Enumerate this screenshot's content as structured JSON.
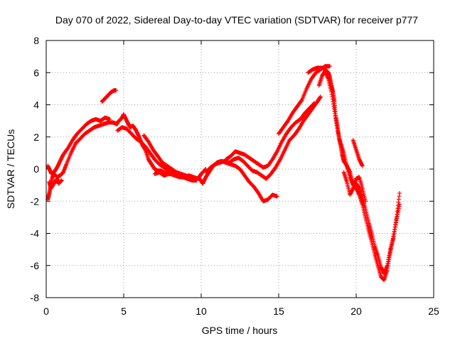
{
  "chart_data": {
    "type": "scatter",
    "title": "Day 070 of 2022, Sidereal Day-to-day VTEC variation (SDTVAR) for receiver p777",
    "xlabel": "GPS time / hours",
    "ylabel": "SDTVAR / TECUs",
    "xlim": [
      0,
      25
    ],
    "ylim": [
      -8,
      8
    ],
    "xticks": [
      0,
      5,
      10,
      15,
      20,
      25
    ],
    "yticks": [
      -8,
      -6,
      -4,
      -2,
      0,
      2,
      4,
      6,
      8
    ],
    "grid": true,
    "marker": "+",
    "color": "#ff0000",
    "series": [
      {
        "name": "SDTVAR",
        "segments": [
          {
            "x": [
              0.1,
              0.2,
              0.3,
              0.4,
              0.5,
              0.7,
              0.9,
              1.1,
              1.3,
              1.6,
              1.9,
              2.2,
              2.5,
              2.8,
              3.1,
              3.4,
              3.7,
              4.0,
              4.3,
              4.6
            ],
            "y": [
              -1.9,
              -1.5,
              -1.0,
              -0.5,
              -0.3,
              -0.5,
              -0.4,
              -0.2,
              0.3,
              1.0,
              1.6,
              1.9,
              2.2,
              2.4,
              2.6,
              2.7,
              2.8,
              2.9,
              2.9,
              2.8
            ]
          },
          {
            "x": [
              0.1,
              0.2,
              0.35,
              0.5,
              0.7,
              0.9,
              1.1,
              1.4,
              1.7,
              2.0,
              2.3,
              2.6,
              2.9,
              3.2,
              3.5,
              3.8,
              4.1
            ],
            "y": [
              0.2,
              0.0,
              -0.3,
              -0.2,
              0.1,
              0.5,
              0.9,
              1.3,
              1.8,
              2.2,
              2.5,
              2.8,
              3.0,
              3.1,
              3.0,
              3.2,
              3.1
            ]
          },
          {
            "x": [
              0.2,
              0.3,
              0.5,
              0.7,
              0.8,
              1.0
            ],
            "y": [
              -0.8,
              -1.2,
              -0.9,
              -0.6,
              -0.9,
              -0.7
            ]
          },
          {
            "x": [
              3.6,
              3.8,
              4.0,
              4.2,
              4.4,
              4.5
            ],
            "y": [
              4.2,
              4.4,
              4.6,
              4.8,
              4.9,
              4.9
            ]
          },
          {
            "x": [
              4.5,
              4.7,
              4.9,
              5.0,
              5.2,
              5.4,
              5.6,
              5.8,
              6.0,
              6.2,
              6.4,
              6.6,
              6.8,
              7.0,
              7.2,
              7.4,
              7.6,
              7.8,
              8.0,
              8.3,
              8.6,
              8.9,
              9.2,
              9.5,
              9.8,
              10.0,
              10.3
            ],
            "y": [
              2.8,
              3.0,
              3.2,
              3.4,
              3.0,
              2.6,
              2.7,
              2.4,
              2.0,
              1.5,
              1.2,
              0.6,
              0.3,
              0.0,
              -0.1,
              -0.1,
              -0.2,
              -0.3,
              -0.3,
              -0.4,
              -0.5,
              -0.5,
              -0.4,
              -0.5,
              -0.6,
              -0.3,
              0.0
            ]
          },
          {
            "x": [
              4.6,
              4.9,
              5.2,
              5.5,
              5.8,
              6.1,
              6.4,
              6.7,
              7.0,
              7.3,
              7.6,
              7.9,
              8.2,
              8.5,
              8.8,
              9.1,
              9.4,
              9.7
            ],
            "y": [
              2.4,
              2.6,
              2.5,
              2.2,
              1.9,
              1.7,
              1.4,
              1.0,
              0.6,
              0.3,
              0.1,
              -0.1,
              -0.2,
              -0.3,
              -0.5,
              -0.6,
              -0.7,
              -0.7
            ]
          },
          {
            "x": [
              6.3,
              6.6,
              6.9,
              7.2,
              7.5,
              7.8,
              8.1,
              8.4,
              8.7,
              9.0,
              9.3,
              9.6
            ],
            "y": [
              2.1,
              1.7,
              1.2,
              0.8,
              0.4,
              0.2,
              0.0,
              -0.2,
              -0.3,
              -0.4,
              -0.6,
              -0.6
            ]
          },
          {
            "x": [
              7.0,
              7.3,
              7.6,
              7.9,
              8.2,
              8.5
            ],
            "y": [
              -0.3,
              -0.2,
              -0.4,
              -0.3,
              -0.2,
              -0.3
            ]
          },
          {
            "x": [
              9.9,
              10.1,
              10.3,
              10.5,
              10.7,
              11.0,
              11.3,
              11.6,
              11.9,
              12.2,
              12.5,
              12.8,
              13.1,
              13.4,
              13.7,
              14.0,
              14.3,
              14.6,
              14.9
            ],
            "y": [
              -0.6,
              -0.9,
              -0.5,
              -0.2,
              0.1,
              0.4,
              0.5,
              0.4,
              0.3,
              0.2,
              0.0,
              -0.4,
              -0.8,
              -1.1,
              -1.5,
              -2.0,
              -1.9,
              -1.6,
              -1.7
            ]
          },
          {
            "x": [
              10.3,
              10.6,
              10.9,
              11.2,
              11.5,
              11.8,
              12.1,
              12.4,
              12.7,
              13.0,
              13.3,
              13.6,
              13.9,
              14.2,
              14.5,
              14.8,
              15.1,
              15.4,
              15.7,
              16.0,
              16.3,
              16.6,
              16.9,
              17.2,
              17.5,
              17.7
            ],
            "y": [
              -0.2,
              0.1,
              0.3,
              0.4,
              0.5,
              0.4,
              0.6,
              0.7,
              0.5,
              0.2,
              -0.1,
              -0.2,
              -0.4,
              -0.6,
              -0.3,
              0.1,
              0.6,
              1.2,
              1.8,
              2.1,
              2.5,
              3.0,
              3.4,
              3.8,
              4.2,
              4.5
            ]
          },
          {
            "x": [
              11.6,
              11.9,
              12.2,
              12.5,
              12.8,
              13.1,
              13.4,
              13.7,
              14.0,
              14.3,
              14.6,
              14.9,
              15.2,
              15.5,
              15.8,
              16.1,
              16.4,
              16.7,
              17.0,
              17.3
            ],
            "y": [
              0.6,
              0.8,
              1.1,
              1.0,
              0.9,
              0.7,
              0.5,
              0.3,
              0.1,
              0.2,
              0.6,
              1.1,
              1.7,
              2.2,
              2.6,
              2.9,
              3.1,
              3.5,
              3.8,
              4.1
            ]
          },
          {
            "x": [
              15.0,
              15.3,
              15.6,
              15.9,
              16.2,
              16.5,
              16.8,
              17.1,
              17.4,
              17.7,
              18.0,
              18.3
            ],
            "y": [
              2.2,
              2.6,
              3.0,
              3.5,
              3.9,
              4.3,
              5.0,
              5.6,
              6.0,
              6.2,
              6.4,
              6.4
            ]
          },
          {
            "x": [
              16.9,
              17.2,
              17.5,
              17.8,
              18.0,
              18.2,
              18.3,
              18.4,
              18.5,
              18.6,
              18.7,
              18.8,
              18.9,
              19.0,
              19.1,
              19.2,
              19.4,
              19.6,
              19.8,
              20.0,
              20.2,
              20.4,
              20.6,
              20.8,
              21.0,
              21.2,
              21.4,
              21.6,
              21.8,
              22.0,
              22.2,
              22.4,
              22.6,
              22.8
            ],
            "y": [
              6.0,
              6.2,
              6.3,
              6.3,
              6.2,
              6.0,
              5.7,
              5.2,
              4.8,
              4.2,
              3.2,
              2.6,
              1.9,
              1.5,
              0.9,
              0.5,
              0.2,
              -0.2,
              -0.9,
              -1.2,
              -1.6,
              -2.2,
              -3.0,
              -3.8,
              -4.5,
              -5.3,
              -6.0,
              -6.7,
              -6.9,
              -6.3,
              -5.2,
              -4.2,
              -3.0,
              -1.5
            ]
          },
          {
            "x": [
              17.6,
              17.8,
              18.0,
              18.2,
              18.4,
              18.6,
              18.8,
              19.0,
              19.2,
              19.4,
              19.6,
              19.8,
              20.0,
              20.2,
              20.4,
              20.6,
              20.8,
              21.0,
              21.2,
              21.4,
              21.6,
              21.8,
              22.0,
              22.2,
              22.4,
              22.6,
              22.8
            ],
            "y": [
              5.2,
              5.8,
              6.1,
              5.6,
              4.8,
              3.6,
              2.4,
              1.6,
              1.0,
              0.2,
              -0.5,
              -1.0,
              -0.9,
              -1.2,
              -1.8,
              -2.5,
              -3.3,
              -4.0,
              -4.8,
              -5.4,
              -6.1,
              -6.5,
              -6.0,
              -5.0,
              -4.3,
              -3.2,
              -2.2
            ]
          },
          {
            "x": [
              19.2,
              19.4,
              19.6,
              19.8,
              20.0,
              20.2,
              20.4,
              20.6
            ],
            "y": [
              -0.2,
              -0.8,
              -1.6,
              -1.2,
              -0.6,
              -0.5,
              -1.2,
              -2.0
            ]
          },
          {
            "x": [
              19.8,
              20.0,
              20.2,
              20.4
            ],
            "y": [
              1.8,
              1.2,
              0.6,
              0.2
            ]
          }
        ]
      }
    ]
  }
}
